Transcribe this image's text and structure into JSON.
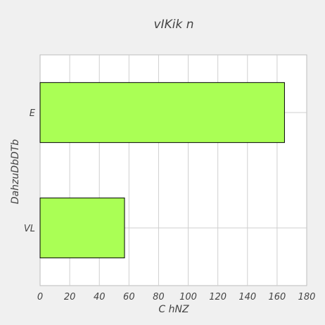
{
  "chart_data": {
    "type": "bar",
    "orientation": "horizontal",
    "title": "vIKik n",
    "xlabel": "C hNZ",
    "ylabel": "DahzuDbDTb",
    "categories": [
      "E",
      "VL"
    ],
    "values": [
      165,
      57
    ],
    "xlim": [
      0,
      180
    ],
    "xticks": [
      "0",
      "20",
      "40",
      "60",
      "80",
      "100",
      "120",
      "140",
      "160",
      "180"
    ],
    "grid": true,
    "bar_color": "#aaff55"
  }
}
